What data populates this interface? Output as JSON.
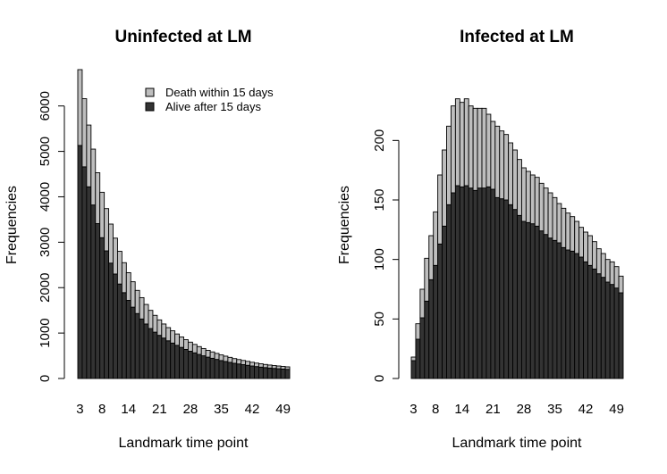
{
  "chart_data": [
    {
      "type": "bar",
      "stacked": true,
      "title": "Uninfected at LM",
      "xlabel": "Landmark time point",
      "ylabel": "Frequencies",
      "ylim": [
        0,
        6800
      ],
      "y_ticks": [
        0,
        1000,
        2000,
        3000,
        4000,
        5000,
        6000
      ],
      "x_tick_labels": [
        "3",
        "8",
        "14",
        "21",
        "28",
        "35",
        "42",
        "49"
      ],
      "categories": [
        3,
        4,
        5,
        6,
        7,
        8,
        9,
        10,
        11,
        12,
        13,
        14,
        15,
        16,
        17,
        18,
        19,
        20,
        21,
        22,
        23,
        24,
        25,
        26,
        27,
        28,
        29,
        30,
        31,
        32,
        33,
        34,
        35,
        36,
        37,
        38,
        39,
        40,
        41,
        42,
        43,
        44,
        45,
        46,
        47,
        48,
        49,
        50
      ],
      "legend": {
        "position": "top-right",
        "entries": [
          {
            "label": "Death within 15 days",
            "color": "#bebebe"
          },
          {
            "label": "Alive after 15 days",
            "color": "#333333"
          }
        ]
      },
      "series": [
        {
          "name": "Alive after 15 days",
          "color": "#333333",
          "values": [
            5130,
            4660,
            4220,
            3820,
            3410,
            3100,
            2810,
            2540,
            2300,
            2080,
            1890,
            1720,
            1570,
            1430,
            1310,
            1200,
            1100,
            1020,
            950,
            890,
            830,
            780,
            730,
            685,
            640,
            600,
            565,
            530,
            500,
            470,
            445,
            420,
            395,
            375,
            355,
            335,
            320,
            305,
            290,
            275,
            262,
            250,
            240,
            230,
            222,
            215,
            208,
            202
          ]
        },
        {
          "name": "Death within 15 days",
          "color": "#bebebe",
          "values": [
            1670,
            1500,
            1360,
            1230,
            1120,
            1000,
            930,
            860,
            790,
            720,
            660,
            610,
            560,
            510,
            470,
            430,
            400,
            370,
            340,
            310,
            290,
            270,
            250,
            230,
            215,
            200,
            185,
            172,
            160,
            150,
            140,
            132,
            124,
            117,
            110,
            103,
            97,
            92,
            87,
            82,
            77,
            73,
            69,
            66,
            63,
            60,
            57,
            54
          ]
        }
      ]
    },
    {
      "type": "bar",
      "stacked": true,
      "title": "Infected at LM",
      "xlabel": "Landmark time point",
      "ylabel": "Frequencies",
      "ylim": [
        0,
        240
      ],
      "y_ticks": [
        0,
        50,
        100,
        150,
        200
      ],
      "x_tick_labels": [
        "3",
        "8",
        "14",
        "21",
        "28",
        "35",
        "42",
        "49"
      ],
      "categories": [
        3,
        4,
        5,
        6,
        7,
        8,
        9,
        10,
        11,
        12,
        13,
        14,
        15,
        16,
        17,
        18,
        19,
        20,
        21,
        22,
        23,
        24,
        25,
        26,
        27,
        28,
        29,
        30,
        31,
        32,
        33,
        34,
        35,
        36,
        37,
        38,
        39,
        40,
        41,
        42,
        43,
        44,
        45,
        46,
        47,
        48,
        49,
        50
      ],
      "series": [
        {
          "name": "Alive after 15 days",
          "color": "#333333",
          "values": [
            15,
            33,
            51,
            65,
            83,
            95,
            113,
            128,
            146,
            156,
            162,
            161,
            162,
            160,
            158,
            160,
            160,
            161,
            159,
            152,
            151,
            150,
            146,
            142,
            137,
            132,
            131,
            130,
            128,
            124,
            121,
            118,
            116,
            114,
            110,
            108,
            107,
            105,
            102,
            98,
            95,
            92,
            88,
            85,
            81,
            79,
            76,
            72
          ]
        },
        {
          "name": "Death within 15 days",
          "color": "#bebebe",
          "values": [
            3,
            13,
            24,
            36,
            37,
            45,
            58,
            64,
            66,
            73,
            73,
            71,
            73,
            69,
            69,
            67,
            67,
            61,
            57,
            60,
            57,
            55,
            52,
            50,
            47,
            45,
            43,
            41,
            41,
            40,
            39,
            38,
            36,
            33,
            33,
            31,
            29,
            27,
            25,
            25,
            25,
            23,
            21,
            20,
            19,
            19,
            18,
            14
          ]
        }
      ]
    }
  ]
}
